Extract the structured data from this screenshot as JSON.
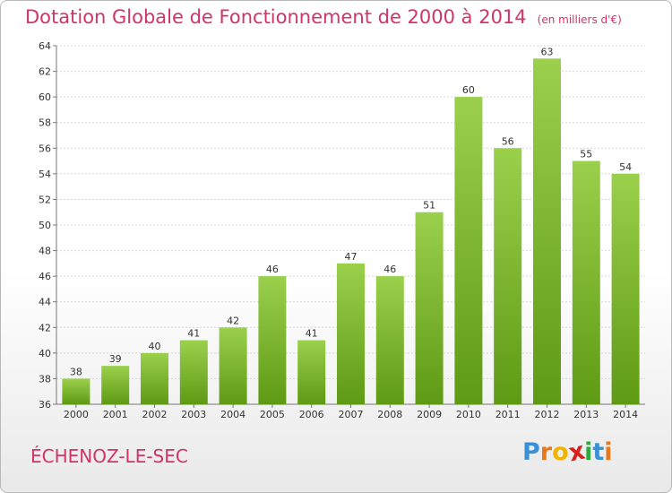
{
  "chart_data": {
    "type": "bar",
    "title": "Dotation Globale de Fonctionnement de 2000 à 2014",
    "subtitle": "(en milliers d'€)",
    "categories": [
      "2000",
      "2001",
      "2002",
      "2003",
      "2004",
      "2005",
      "2006",
      "2007",
      "2008",
      "2009",
      "2010",
      "2011",
      "2012",
      "2013",
      "2014"
    ],
    "values": [
      38,
      39,
      40,
      41,
      42,
      46,
      41,
      47,
      46,
      51,
      60,
      56,
      63,
      55,
      54
    ],
    "ylim": [
      36,
      64
    ],
    "yticks": [
      36,
      38,
      40,
      42,
      44,
      46,
      48,
      50,
      52,
      54,
      56,
      58,
      60,
      62,
      64
    ],
    "grid": true,
    "bar_color": "#7ab82e"
  },
  "commune": "ÉCHENOZ-LE-SEC",
  "logo": {
    "letters": [
      "P",
      "r",
      "o",
      "x",
      "i",
      "t",
      "i"
    ],
    "colors": [
      "#3a8fd8",
      "#e8781c",
      "#f0b400",
      "#d8201c",
      "#2eaa3c",
      "#3a8fd8",
      "#e8781c"
    ]
  }
}
